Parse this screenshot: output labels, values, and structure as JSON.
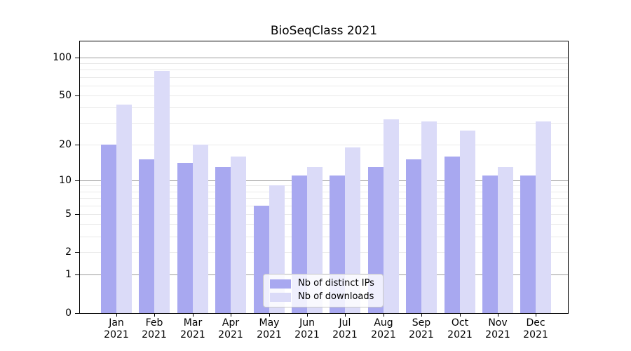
{
  "chart_data": {
    "type": "bar",
    "title": "BioSeqClass 2021",
    "x_ticklabels": [
      [
        "Jan",
        "2021"
      ],
      [
        "Feb",
        "2021"
      ],
      [
        "Mar",
        "2021"
      ],
      [
        "Apr",
        "2021"
      ],
      [
        "May",
        "2021"
      ],
      [
        "Jun",
        "2021"
      ],
      [
        "Jul",
        "2021"
      ],
      [
        "Aug",
        "2021"
      ],
      [
        "Sep",
        "2021"
      ],
      [
        "Oct",
        "2021"
      ],
      [
        "Nov",
        "2021"
      ],
      [
        "Dec",
        "2021"
      ]
    ],
    "series": [
      {
        "name": "Nb of distinct IPs",
        "color": "#a8a8f0",
        "values": [
          20,
          15,
          14,
          13,
          6,
          11,
          11,
          13,
          15,
          16,
          11,
          11
        ]
      },
      {
        "name": "Nb of downloads",
        "color": "#dbdbf8",
        "values": [
          42,
          78,
          20,
          16,
          9,
          13,
          19,
          32,
          31,
          26,
          13,
          31
        ]
      }
    ],
    "y_axis": {
      "scale": "log10(1+x)",
      "tick_values": [
        0,
        1,
        2,
        5,
        10,
        20,
        50,
        100
      ],
      "tick_labels": [
        "0",
        "1",
        "2",
        "5",
        "10",
        "20",
        "50",
        "100"
      ]
    },
    "grid": {
      "major_values": [
        1,
        10,
        100
      ],
      "minor_values": [
        2,
        3,
        4,
        5,
        6,
        7,
        8,
        9,
        20,
        30,
        40,
        50,
        60,
        70,
        80,
        90
      ],
      "major_color": "#9c9c9c",
      "minor_color": "#e9e9e9"
    },
    "legend": {
      "position": "inside-bottom-center",
      "entries": [
        "Nb of distinct IPs",
        "Nb of downloads"
      ]
    }
  }
}
